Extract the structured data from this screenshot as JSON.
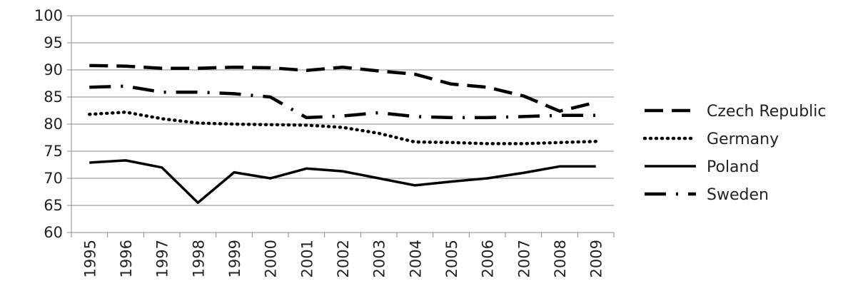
{
  "chart_data": {
    "type": "line",
    "title": "",
    "xlabel": "",
    "ylabel": "",
    "categories": [
      "1995",
      "1996",
      "1997",
      "1998",
      "1999",
      "2000",
      "2001",
      "2002",
      "2003",
      "2004",
      "2005",
      "2006",
      "2007",
      "2008",
      "2009"
    ],
    "ylim": [
      60,
      100
    ],
    "yticks": [
      60,
      65,
      70,
      75,
      80,
      85,
      90,
      95,
      100
    ],
    "grid": true,
    "legend_position": "right",
    "series": [
      {
        "name": "Czech Republic",
        "style": "dashed",
        "color": "#000000",
        "values": [
          90.8,
          90.7,
          90.3,
          90.3,
          90.5,
          90.4,
          89.9,
          90.5,
          89.8,
          89.2,
          87.4,
          86.8,
          85.2,
          82.4,
          84.0
        ]
      },
      {
        "name": "Germany",
        "style": "dotted",
        "color": "#000000",
        "values": [
          81.8,
          82.2,
          81.0,
          80.2,
          80.0,
          79.9,
          79.8,
          79.4,
          78.3,
          76.7,
          76.6,
          76.4,
          76.4,
          76.6,
          76.8
        ]
      },
      {
        "name": "Poland",
        "style": "solid",
        "color": "#000000",
        "values": [
          72.9,
          73.3,
          72.0,
          65.5,
          71.1,
          70.0,
          71.8,
          71.3,
          70.0,
          68.7,
          69.4,
          70.0,
          71.0,
          72.2,
          72.2
        ]
      },
      {
        "name": "Sweden",
        "style": "dash-dot",
        "color": "#000000",
        "values": [
          86.8,
          87.0,
          85.9,
          85.9,
          85.6,
          85.0,
          81.2,
          81.5,
          82.1,
          81.4,
          81.2,
          81.2,
          81.4,
          81.6,
          81.6
        ]
      }
    ]
  }
}
